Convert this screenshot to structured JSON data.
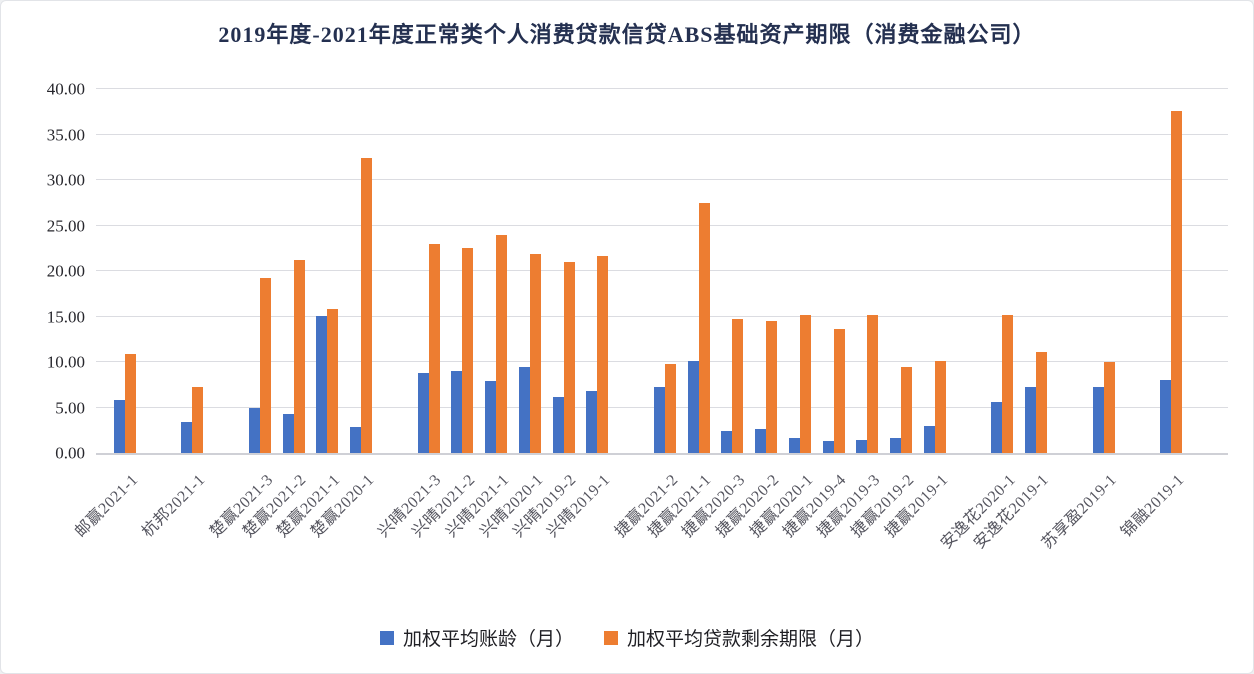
{
  "chart_data": {
    "type": "bar",
    "title": "2019年度-2021年度正常类个人消费贷款信贷ABS基础资产期限（消费金融公司）",
    "xlabel": "",
    "ylabel": "",
    "ylim": [
      0,
      40
    ],
    "ytick_step": 5,
    "ytick_labels": [
      "0.00",
      "5.00",
      "10.00",
      "15.00",
      "20.00",
      "25.00",
      "30.00",
      "35.00",
      "40.00"
    ],
    "grid": "horizontal",
    "legend_position": "bottom",
    "x_label_rotation": -45,
    "categories": [
      "邮赢2021-1",
      "杭邦2021-1",
      "楚赢2021-3",
      "楚赢2021-2",
      "楚赢2021-1",
      "楚赢2020-1",
      "兴晴2021-3",
      "兴晴2021-2",
      "兴晴2021-1",
      "兴晴2020-1",
      "兴晴2019-2",
      "兴晴2019-1",
      "捷赢2021-2",
      "捷赢2021-1",
      "捷赢2020-3",
      "捷赢2020-2",
      "捷赢2020-1",
      "捷赢2019-4",
      "捷赢2019-3",
      "捷赢2019-2",
      "捷赢2019-1",
      "安逸花2020-1",
      "安逸花2019-1",
      "苏享盈2019-1",
      "锦融2019-1"
    ],
    "groups": [
      "邮赢",
      "杭邦",
      "楚赢",
      "楚赢",
      "楚赢",
      "楚赢",
      "兴晴",
      "兴晴",
      "兴晴",
      "兴晴",
      "兴晴",
      "兴晴",
      "捷赢",
      "捷赢",
      "捷赢",
      "捷赢",
      "捷赢",
      "捷赢",
      "捷赢",
      "捷赢",
      "捷赢",
      "安逸花",
      "安逸花",
      "苏享盈",
      "锦融"
    ],
    "series": [
      {
        "name": "加权平均账龄（月）",
        "color": "#4472C4",
        "values": [
          5.8,
          3.4,
          5.0,
          4.3,
          15.1,
          2.9,
          8.8,
          9.0,
          7.9,
          9.5,
          6.2,
          6.8,
          7.3,
          10.1,
          2.4,
          2.6,
          1.7,
          1.3,
          1.4,
          1.6,
          3.0,
          5.6,
          7.3,
          7.3,
          8.0
        ]
      },
      {
        "name": "加权平均贷款剩余期限（月）",
        "color": "#ED7D31",
        "values": [
          10.9,
          7.3,
          19.2,
          21.2,
          15.8,
          32.4,
          23.0,
          22.5,
          24.0,
          21.9,
          21.0,
          21.7,
          9.8,
          27.5,
          14.7,
          14.5,
          15.2,
          13.6,
          15.2,
          9.5,
          10.1,
          15.2,
          11.1,
          10.0,
          37.6
        ]
      }
    ]
  }
}
